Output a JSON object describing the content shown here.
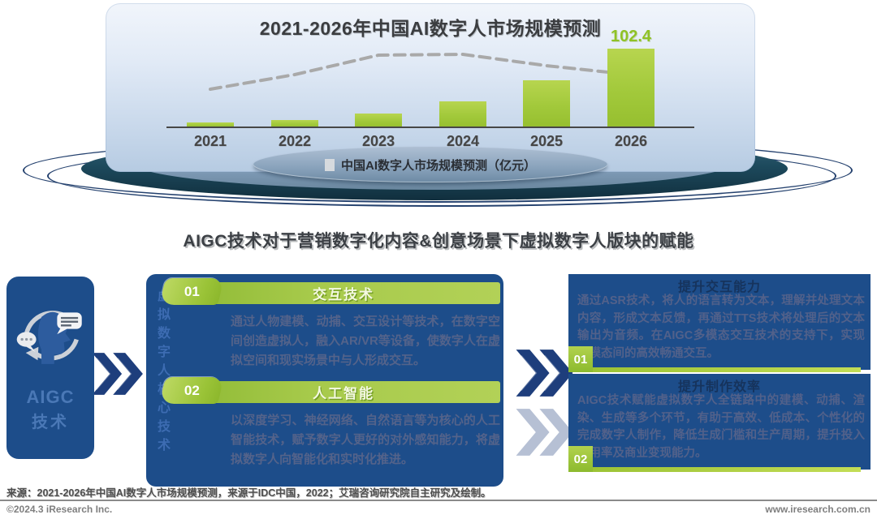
{
  "chart_data": {
    "type": "bar",
    "title": "2021-2026年中国AI数字人市场规模预测",
    "categories": [
      "2021",
      "2022",
      "2023",
      "2024",
      "2025",
      "2026"
    ],
    "unit": "亿元",
    "bar_series": {
      "name": "中国AI数字人市场规模预测（亿元）",
      "color": "#a6c93e",
      "values": [
        6.3,
        9.5,
        17.9,
        33.8,
        61.2,
        102.4
      ],
      "labels_shown": [
        "",
        "",
        "",
        "",
        "",
        "102.4"
      ]
    },
    "trend_line": {
      "style": "dashed",
      "color": "#a9a9a9",
      "relative_values": [
        0.47,
        0.65,
        0.89,
        0.9,
        0.76,
        0.65
      ],
      "note": "灰色虚线趋势线，无数值标注"
    },
    "legend_label": "中国AI数字人市场规模预测（亿元）",
    "legend_position": "bottom",
    "ylim": [
      0,
      110
    ],
    "grid": false
  },
  "section_title": "AIGC技术对于营销数字化内容&创意场景下虚拟数字人版块的赋能",
  "diagram": {
    "left_card": {
      "line1": "AIGC",
      "line2": "技术",
      "icon": "ai-conversation-cycle-icon"
    },
    "middle_panel": {
      "vertical_label": "虚拟数字人核心技术",
      "items": [
        {
          "num": "01",
          "title": "交互技术",
          "body": "通过人物建模、动捕、交互设计等技术，在数字空间创造虚拟人，融入AR/VR等设备，使数字人在虚拟空间和现实场景中与人形成交互。"
        },
        {
          "num": "02",
          "title": "人工智能",
          "body": "以深度学习、神经网络、自然语言等为核心的人工智能技术，赋予数字人更好的对外感知能力，将虚拟数字人向智能化和实时化推进。"
        }
      ]
    },
    "right_boxes": [
      {
        "num": "01",
        "title": "提升交互能力",
        "body": "通过ASR技术，将人的语言转为文本，理解并处理文本内容，形成文本反馈，再通过TTS技术将处理后的文本输出为音频。在AIGC多模态交互技术的支持下，实现多模态间的高效畅通交互。"
      },
      {
        "num": "02",
        "title": "提升制作效率",
        "body": "AIGC技术赋能虚拟数字人全链路中的建模、动捕、渲染、生成等多个环节，有助于高效、低成本、个性化的完成数字人制作，降低生成门槛和生产周期，提升投入使用率及商业变现能力。"
      }
    ]
  },
  "footer": {
    "source": "来源：2021-2026年中国AI数字人市场规模预测，来源于IDC中国，2022；艾瑞咨询研究院自主研究及绘制。",
    "copyright": "©2024.3 iResearch Inc.",
    "website": "www.iresearch.com.cn"
  },
  "colors": {
    "bar_green": "#a6c93e",
    "lime_accent": "#9cc335",
    "navy_box": "#1d4d8a",
    "stage_teal": "#1c4556",
    "trend_gray": "#a9a9a9"
  }
}
